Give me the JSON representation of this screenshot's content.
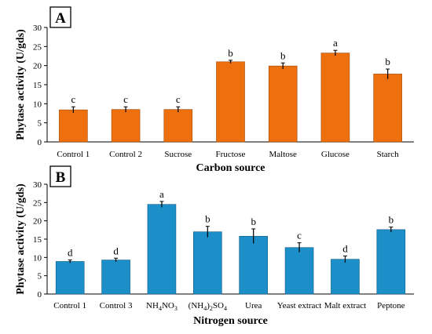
{
  "panels": [
    {
      "letter": "A",
      "color": "#EE6F0E",
      "edge_color": "#9C4A0B",
      "chart_data": {
        "type": "bar",
        "title": "",
        "xlabel": "Carbon source",
        "ylabel": "Phytase activity (U/gds)",
        "ylim": [
          0,
          30
        ],
        "yticks": [
          0,
          5,
          10,
          15,
          20,
          25,
          30
        ],
        "categories": [
          "Control 1",
          "Control 2",
          "Sucrose",
          "Fructose",
          "Maltose",
          "Glucose",
          "Starch"
        ],
        "values": [
          8.4,
          8.5,
          8.5,
          21.0,
          19.9,
          23.3,
          17.8
        ],
        "errors": [
          0.8,
          0.7,
          0.7,
          0.4,
          0.8,
          0.7,
          1.3
        ],
        "significance": [
          "c",
          "c",
          "c",
          "b",
          "b",
          "a",
          "b"
        ]
      }
    },
    {
      "letter": "B",
      "color": "#1D8FC8",
      "edge_color": "#0F5C85",
      "chart_data": {
        "type": "bar",
        "title": "",
        "xlabel": "Nitrogen source",
        "ylabel": "Phytase activity (U/gds)",
        "ylim": [
          0,
          30
        ],
        "yticks": [
          0,
          5,
          10,
          15,
          20,
          25,
          30
        ],
        "categories": [
          "Control 1",
          "Control 3",
          "NH4NO3",
          "(NH4)2SO4",
          "Urea",
          "Yeast extract",
          "Malt extract",
          "Peptone"
        ],
        "values": [
          8.9,
          9.3,
          24.5,
          17.0,
          15.8,
          12.7,
          9.5,
          17.6
        ],
        "errors": [
          0.4,
          0.5,
          0.8,
          1.5,
          2.0,
          1.3,
          0.9,
          0.7
        ],
        "significance": [
          "d",
          "d",
          "a",
          "b",
          "b",
          "c",
          "d",
          "b"
        ]
      }
    }
  ]
}
